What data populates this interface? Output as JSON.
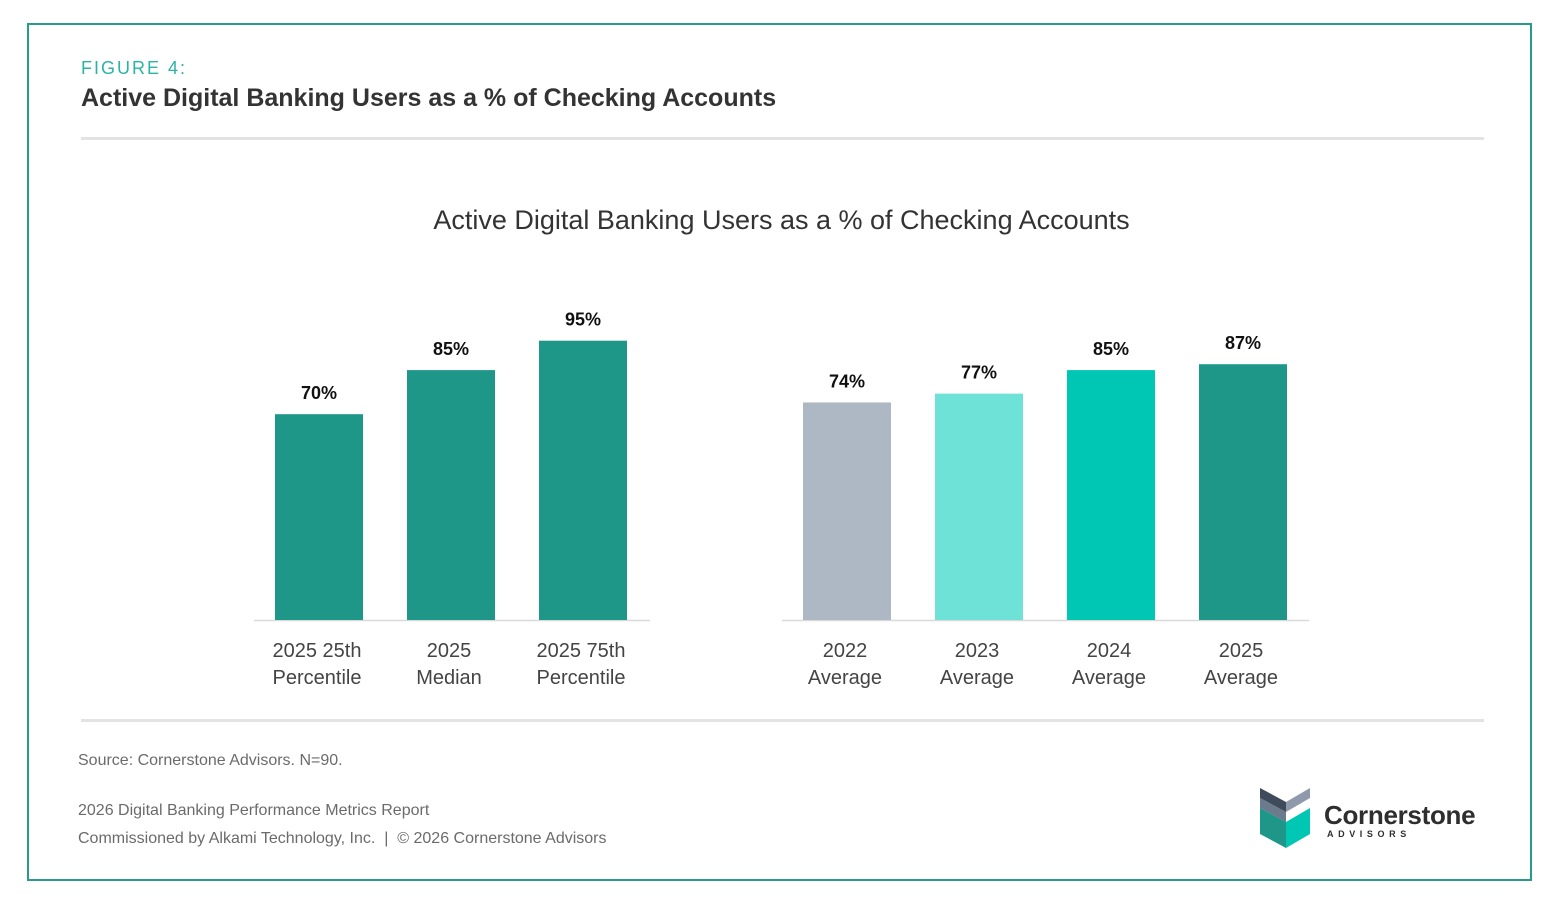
{
  "figure": {
    "label": "FIGURE 4:",
    "title": "Active Digital Banking Users as a % of Checking Accounts"
  },
  "chart_data": {
    "type": "bar",
    "title": "Active Digital Banking Users as a % of Checking Accounts",
    "xlabel": "",
    "ylabel": "",
    "ylim": [
      0,
      100
    ],
    "grid": false,
    "categories": [
      [
        "2025 25th",
        "Percentile"
      ],
      [
        "2025",
        "Median"
      ],
      [
        "2025 75th",
        "Percentile"
      ],
      [
        "2022",
        "Average"
      ],
      [
        "2023",
        "Average"
      ],
      [
        "2024",
        "Average"
      ],
      [
        "2025",
        "Average"
      ]
    ],
    "values": [
      70,
      85,
      95,
      74,
      77,
      85,
      87
    ],
    "data_labels": [
      "70%",
      "85%",
      "95%",
      "74%",
      "77%",
      "85%",
      "87%"
    ],
    "colors": [
      "#1e9688",
      "#1e9688",
      "#1e9688",
      "#adb8c4",
      "#6ee2d7",
      "#00c6b4",
      "#1e9688"
    ]
  },
  "footer": {
    "source": "Source: Cornerstone Advisors. N=90.",
    "report": "2026 Digital Banking Performance Metrics Report",
    "commission": "Commissioned by Alkami Technology, Inc.  |  © 2026 Cornerstone Advisors"
  },
  "logo": {
    "name": "Cornerstone",
    "sub": "ADVISORS",
    "icon": "cornerstone-cube-icon"
  },
  "colors": {
    "frame": "#2a9a8a",
    "accent": "#2bb3a3",
    "text": "#333333"
  }
}
